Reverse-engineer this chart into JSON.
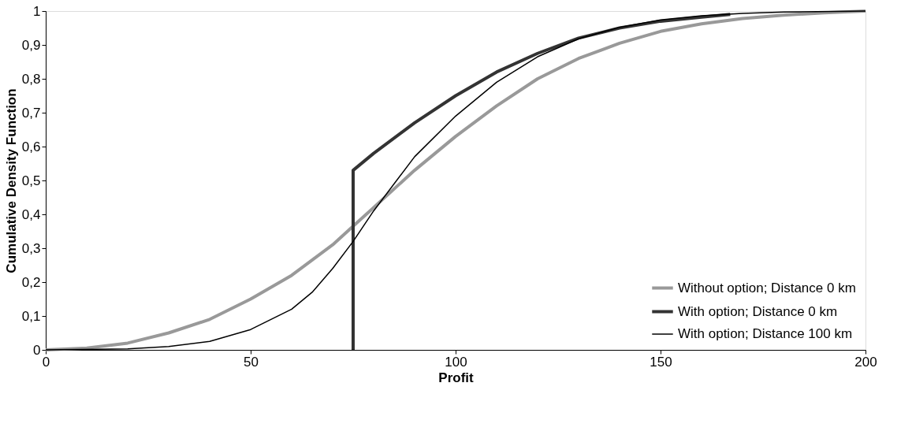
{
  "chart_data": {
    "type": "line",
    "xlabel": "Profit",
    "ylabel": "Cumulative Density Function",
    "xlim": [
      0,
      200
    ],
    "xticks": [
      0,
      50,
      100,
      150,
      200
    ],
    "ylim": [
      0,
      1
    ],
    "yticks": [
      0,
      {
        "value": 0.1,
        "label": "0,1"
      },
      {
        "value": 0.2,
        "label": "0,2"
      },
      {
        "value": 0.3,
        "label": "0,3"
      },
      {
        "value": 0.4,
        "label": "0,4"
      },
      {
        "value": 0.5,
        "label": "0,5"
      },
      {
        "value": 0.6,
        "label": "0,6"
      },
      {
        "value": 0.7,
        "label": "0,7"
      },
      {
        "value": 0.8,
        "label": "0,8"
      },
      {
        "value": 0.9,
        "label": "0,9"
      },
      1
    ],
    "grid": false,
    "legend": "bottom right",
    "line_style": "solid",
    "marker": "none",
    "series": [
      {
        "name": "Without option; Distance 0 km",
        "color": "#999999",
        "x": [
          0,
          10,
          20,
          30,
          40,
          50,
          60,
          70,
          75,
          80,
          90,
          100,
          110,
          120,
          130,
          140,
          150,
          160,
          170,
          180,
          190,
          200
        ],
        "values": [
          0,
          0.005,
          0.02,
          0.05,
          0.09,
          0.15,
          0.22,
          0.31,
          0.365,
          0.42,
          0.53,
          0.63,
          0.72,
          0.8,
          0.86,
          0.905,
          0.94,
          0.962,
          0.978,
          0.988,
          0.995,
          1
        ]
      },
      {
        "name": "With option; Distance 0 km",
        "color": "#333333",
        "x": [
          75,
          75,
          80,
          90,
          100,
          110,
          120,
          130,
          140,
          150,
          160,
          167
        ],
        "values": [
          0,
          0.53,
          0.58,
          0.67,
          0.75,
          0.82,
          0.875,
          0.92,
          0.95,
          0.97,
          0.982,
          0.99
        ]
      },
      {
        "name": "With option; Distance 100 km",
        "color": "#000000",
        "x": [
          0,
          20,
          30,
          40,
          50,
          60,
          65,
          70,
          75,
          80,
          85,
          90,
          100,
          110,
          120,
          130,
          140,
          150,
          160,
          170,
          180,
          200
        ],
        "values": [
          0,
          0.003,
          0.01,
          0.025,
          0.06,
          0.12,
          0.17,
          0.24,
          0.32,
          0.41,
          0.49,
          0.57,
          0.69,
          0.79,
          0.865,
          0.918,
          0.952,
          0.974,
          0.986,
          0.993,
          0.997,
          1
        ]
      }
    ]
  }
}
